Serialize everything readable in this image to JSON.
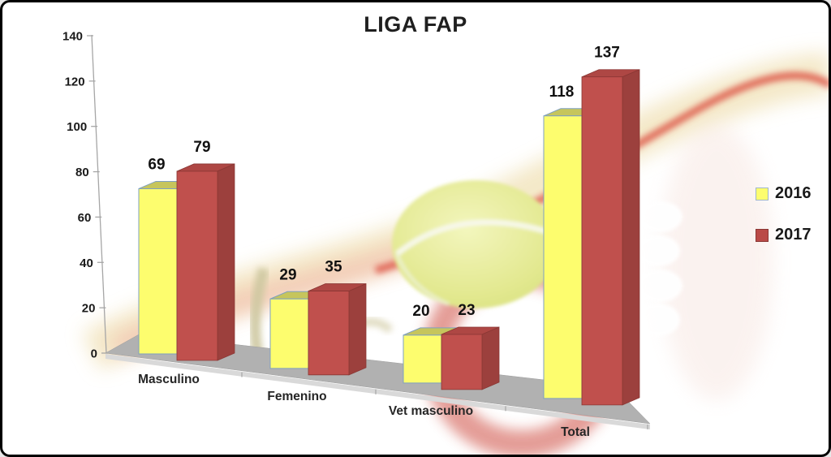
{
  "title": "LIGA FAP",
  "chart_data": {
    "type": "bar",
    "style": "3d-clustered-column",
    "title": "LIGA FAP",
    "categories": [
      "Masculino",
      "Femenino",
      "Vet masculino",
      "Total"
    ],
    "series": [
      {
        "name": "2016",
        "color": "#FDFD6E",
        "values": [
          69,
          29,
          20,
          118
        ]
      },
      {
        "name": "2017",
        "color": "#C0504D",
        "values": [
          79,
          35,
          23,
          137
        ]
      }
    ],
    "data_labels": true,
    "ylim": [
      0,
      140
    ],
    "yticks": [
      0,
      20,
      40,
      60,
      80,
      100,
      120,
      140
    ],
    "legend_position": "right",
    "grid": false,
    "background": "tennis-ball-photo"
  },
  "legend": {
    "items": [
      {
        "label": "2016",
        "color": "#FDFD6E",
        "border": "#9FB6CC"
      },
      {
        "label": "2017",
        "color": "#BA4A47",
        "border": "#8A3734"
      }
    ]
  },
  "colors": {
    "bar2016_front": "#FDFD6E",
    "bar2016_top": "#C6C55C",
    "bar2016_stroke": "#7FA0C0",
    "bar2017_front": "#C0504D",
    "bar2017_top": "#AE4744",
    "bar2017_side": "#9C403D",
    "bar2017_stroke": "#8A3734",
    "floor": "#B1B1B1",
    "floor_edge": "#D9D9D9",
    "axis": "#A6A6A6",
    "text": "#1a1a1a"
  }
}
